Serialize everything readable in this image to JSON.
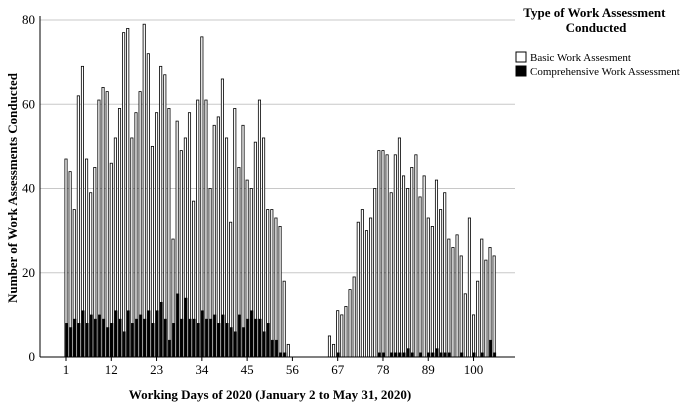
{
  "chart_data": {
    "type": "bar",
    "xlabel": "Working Days of 2020 (January 2 to May 31, 2020)",
    "ylabel": "Number of Work Assessments Conducted",
    "ylim": [
      0,
      80
    ],
    "yticks": [
      0,
      20,
      40,
      60,
      80
    ],
    "xticks": [
      1,
      12,
      23,
      34,
      45,
      56,
      67,
      78,
      89,
      100
    ],
    "x_range": [
      1,
      104
    ],
    "grid": "horizontal",
    "legend": {
      "title": "Type of Work Assessment Conducted",
      "position": "right"
    },
    "series": [
      {
        "name": "Basic Work Assesment",
        "color": "#ffffff",
        "values": [
          47,
          44,
          35,
          62,
          69,
          47,
          39,
          45,
          61,
          64,
          63,
          46,
          52,
          59,
          77,
          78,
          52,
          58,
          63,
          79,
          72,
          50,
          58,
          69,
          67,
          59,
          28,
          56,
          49,
          52,
          58,
          37,
          61,
          76,
          61,
          40,
          55,
          57,
          66,
          52,
          32,
          59,
          45,
          55,
          42,
          40,
          51,
          61,
          52,
          35,
          35,
          33,
          31,
          18,
          3,
          0,
          0,
          0,
          0,
          0,
          0,
          0,
          0,
          0,
          5,
          3,
          11,
          10,
          12,
          16,
          19,
          32,
          35,
          30,
          33,
          40,
          49,
          49,
          48,
          39,
          48,
          52,
          43,
          40,
          45,
          48,
          38,
          43,
          33,
          31,
          42,
          35,
          39,
          28,
          26,
          29,
          24,
          15,
          33,
          10,
          18,
          28,
          23,
          26,
          24
        ]
      },
      {
        "name": "Comprehensive Work Assessment",
        "color": "#000000",
        "values": [
          8,
          7,
          9,
          8,
          11,
          8,
          10,
          9,
          10,
          9,
          7,
          8,
          11,
          9,
          6,
          11,
          8,
          9,
          10,
          9,
          11,
          8,
          11,
          13,
          9,
          4,
          8,
          15,
          9,
          14,
          9,
          9,
          8,
          11,
          9,
          9,
          10,
          8,
          10,
          8,
          7,
          6,
          10,
          7,
          9,
          11,
          9,
          9,
          6,
          8,
          4,
          4,
          1,
          1,
          0,
          0,
          0,
          0,
          0,
          0,
          0,
          0,
          0,
          0,
          0,
          0,
          1,
          0,
          0,
          0,
          0,
          0,
          0,
          0,
          0,
          0,
          1,
          1,
          0,
          1,
          1,
          1,
          1,
          2,
          1,
          0,
          1,
          0,
          1,
          1,
          2,
          1,
          1,
          1,
          0,
          0,
          1,
          0,
          0,
          1,
          0,
          1,
          0,
          4,
          1
        ]
      }
    ]
  }
}
